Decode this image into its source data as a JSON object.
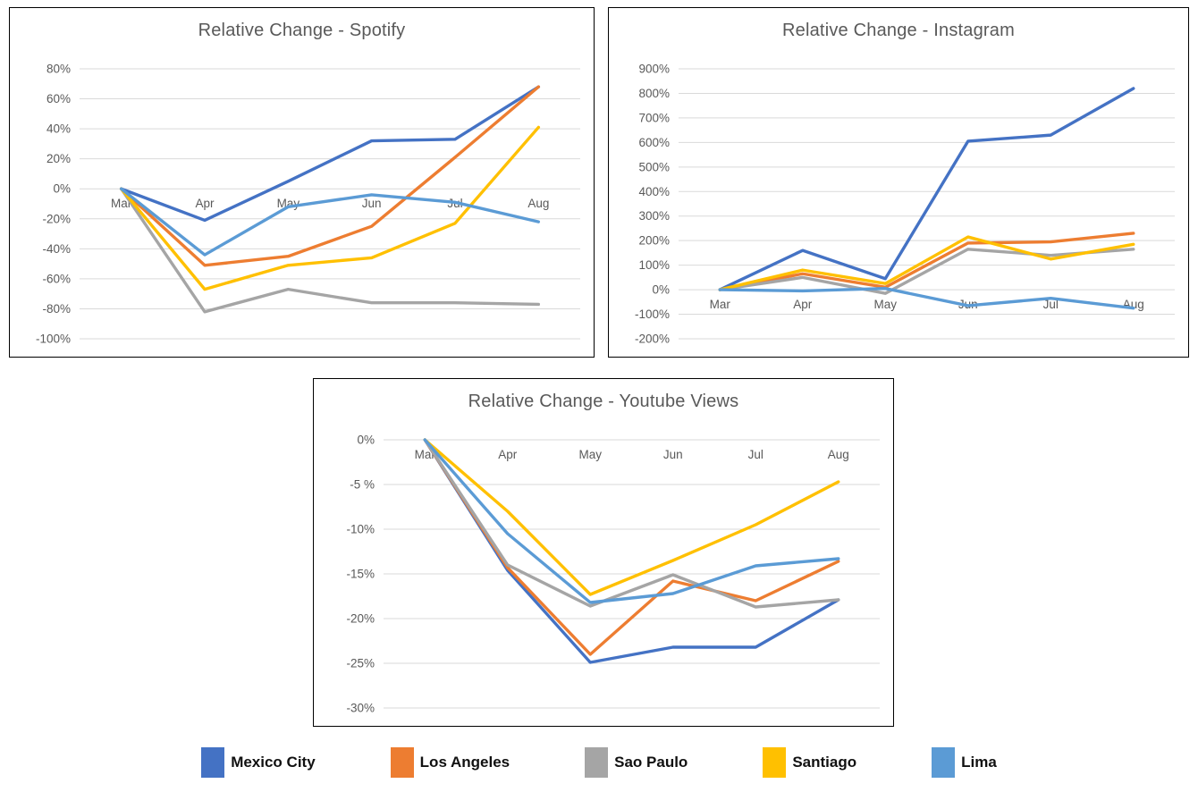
{
  "months": [
    "Mar",
    "Apr",
    "May",
    "Jun",
    "Jul",
    "Aug"
  ],
  "colors": {
    "mexico_city": "#4472C4",
    "los_angeles": "#ED7D31",
    "sao_paulo": "#A5A5A5",
    "santiago": "#FFC000",
    "lima": "#5B9BD5",
    "gridline": "#D9D9D9",
    "title_text": "#595959"
  },
  "legend": {
    "items": [
      {
        "label": "Mexico City",
        "color": "#4472C4"
      },
      {
        "label": "Los Angeles",
        "color": "#ED7D31"
      },
      {
        "label": "Sao Paulo",
        "color": "#A5A5A5"
      },
      {
        "label": "Santiago",
        "color": "#FFC000"
      },
      {
        "label": "Lima",
        "color": "#5B9BD5"
      }
    ]
  },
  "chart_data": [
    {
      "type": "line",
      "title": "Relative Change - Spotify",
      "x": [
        "Mar",
        "Apr",
        "May",
        "Jun",
        "Jul",
        "Aug"
      ],
      "xlabel": "",
      "ylabel": "",
      "ylim": [
        -100,
        80
      ],
      "grid": true,
      "yticks": [
        {
          "value": 80,
          "label": "80%"
        },
        {
          "value": 60,
          "label": "60%"
        },
        {
          "value": 40,
          "label": "40%"
        },
        {
          "value": 20,
          "label": "20%"
        },
        {
          "value": 0,
          "label": "0%"
        },
        {
          "value": -20,
          "label": "-20%"
        },
        {
          "value": -40,
          "label": "-40%"
        },
        {
          "value": -60,
          "label": "-60%"
        },
        {
          "value": -80,
          "label": "-80%"
        },
        {
          "value": -100,
          "label": "-100%"
        }
      ],
      "series": [
        {
          "name": "Mexico City",
          "color": "#4472C4",
          "values": [
            0,
            -21,
            5,
            32,
            33,
            68
          ]
        },
        {
          "name": "Los Angeles",
          "color": "#ED7D31",
          "values": [
            0,
            -51,
            -45,
            -25,
            21,
            68
          ]
        },
        {
          "name": "Sao Paulo",
          "color": "#A5A5A5",
          "values": [
            0,
            -82,
            -67,
            -76,
            -76,
            -77
          ]
        },
        {
          "name": "Santiago",
          "color": "#FFC000",
          "values": [
            0,
            -67,
            -51,
            -46,
            -23,
            41
          ]
        },
        {
          "name": "Lima",
          "color": "#5B9BD5",
          "values": [
            0,
            -44,
            -12,
            -4,
            -9,
            -22
          ]
        }
      ]
    },
    {
      "type": "line",
      "title": "Relative Change - Instagram",
      "x": [
        "Mar",
        "Apr",
        "May",
        "Jun",
        "Jul",
        "Aug"
      ],
      "xlabel": "",
      "ylabel": "",
      "ylim": [
        -200,
        900
      ],
      "grid": true,
      "yticks": [
        {
          "value": 900,
          "label": "900%"
        },
        {
          "value": 800,
          "label": "800%"
        },
        {
          "value": 700,
          "label": "700%"
        },
        {
          "value": 600,
          "label": "600%"
        },
        {
          "value": 500,
          "label": "500%"
        },
        {
          "value": 400,
          "label": "400%"
        },
        {
          "value": 300,
          "label": "300%"
        },
        {
          "value": 200,
          "label": "200%"
        },
        {
          "value": 100,
          "label": "100%"
        },
        {
          "value": 0,
          "label": "0%"
        },
        {
          "value": -100,
          "label": "-100%"
        },
        {
          "value": -200,
          "label": "-200%"
        }
      ],
      "series": [
        {
          "name": "Mexico City",
          "color": "#4472C4",
          "values": [
            0,
            160,
            45,
            605,
            630,
            820
          ]
        },
        {
          "name": "Los Angeles",
          "color": "#ED7D31",
          "values": [
            0,
            65,
            10,
            190,
            195,
            230
          ]
        },
        {
          "name": "Sao Paulo",
          "color": "#A5A5A5",
          "values": [
            0,
            50,
            -15,
            165,
            140,
            165
          ]
        },
        {
          "name": "Santiago",
          "color": "#FFC000",
          "values": [
            0,
            80,
            25,
            215,
            125,
            185
          ]
        },
        {
          "name": "Lima",
          "color": "#5B9BD5",
          "values": [
            0,
            -5,
            5,
            -65,
            -35,
            -75
          ]
        }
      ]
    },
    {
      "type": "line",
      "title": "Relative Change - Youtube Views",
      "x": [
        "Mar",
        "Apr",
        "May",
        "Jun",
        "Jul",
        "Aug"
      ],
      "xlabel": "",
      "ylabel": "",
      "ylim": [
        -30,
        0
      ],
      "grid": true,
      "yticks": [
        {
          "value": 0,
          "label": "0%"
        },
        {
          "value": -5,
          "label": "-5 %"
        },
        {
          "value": -10,
          "label": "-10%"
        },
        {
          "value": -15,
          "label": "-15%"
        },
        {
          "value": -20,
          "label": "-20%"
        },
        {
          "value": -25,
          "label": "-25%"
        },
        {
          "value": -30,
          "label": "-30%"
        }
      ],
      "series": [
        {
          "name": "Mexico City",
          "color": "#4472C4",
          "values": [
            0,
            -14.6,
            -24.9,
            -23.2,
            -23.2,
            -17.9
          ]
        },
        {
          "name": "Los Angeles",
          "color": "#ED7D31",
          "values": [
            0,
            -14.3,
            -24.0,
            -15.8,
            -18.0,
            -13.6
          ]
        },
        {
          "name": "Sao Paulo",
          "color": "#A5A5A5",
          "values": [
            0,
            -14.0,
            -18.6,
            -15.1,
            -18.7,
            -17.9
          ]
        },
        {
          "name": "Santiago",
          "color": "#FFC000",
          "values": [
            0,
            -8.0,
            -17.3,
            -13.5,
            -9.5,
            -4.7
          ]
        },
        {
          "name": "Lima",
          "color": "#5B9BD5",
          "values": [
            0,
            -10.5,
            -18.2,
            -17.2,
            -14.1,
            -13.3
          ]
        }
      ]
    }
  ]
}
